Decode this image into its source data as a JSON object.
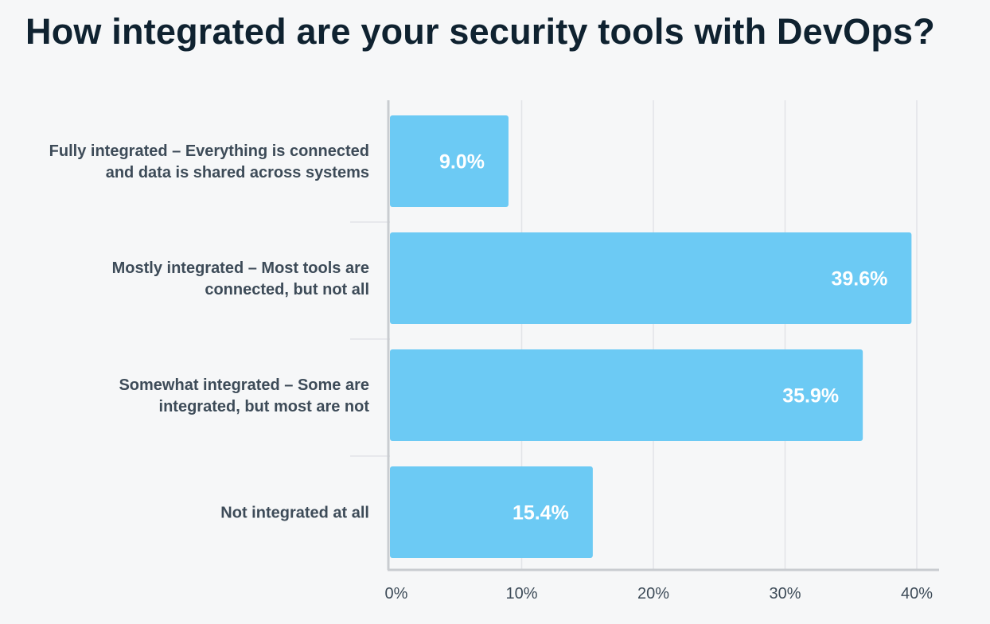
{
  "chart_data": {
    "type": "bar",
    "orientation": "horizontal",
    "title": "How integrated are your security tools with DevOps?",
    "categories": [
      [
        "Fully integrated – Everything is connected",
        "and data is shared across systems"
      ],
      [
        "Mostly integrated – Most tools are",
        "connected, but not all"
      ],
      [
        "Somewhat integrated – Some are",
        "integrated, but most are not"
      ],
      [
        "Not integrated at all"
      ]
    ],
    "values": [
      9.0,
      39.6,
      35.9,
      15.4
    ],
    "value_labels": [
      "9.0%",
      "39.6%",
      "35.9%",
      "15.4%"
    ],
    "xlim": [
      0,
      40
    ],
    "xticks": [
      0,
      10,
      20,
      30,
      40
    ],
    "xtick_labels": [
      "0%",
      "10%",
      "20%",
      "30%",
      "40%"
    ],
    "grid": "vertical",
    "colors": {
      "bar": "#6ccaf4",
      "background": "#f6f7f8",
      "title": "#0f2230",
      "label": "#3d4b58",
      "grid": "#e2e4e7",
      "axis": "#c9ccd0"
    }
  }
}
